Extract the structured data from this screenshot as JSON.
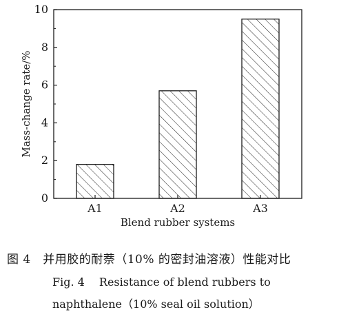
{
  "chart_data": {
    "type": "bar",
    "categories": [
      "A1",
      "A2",
      "A3"
    ],
    "values": [
      1.8,
      5.7,
      9.5
    ],
    "xlabel": "Blend rubber systems",
    "ylabel": "Mass-change rate/%",
    "ylim": [
      0,
      10
    ],
    "yticks": [
      0,
      2,
      4,
      6,
      8,
      10
    ],
    "grid": false,
    "bar_fill": "diagonal-hatch",
    "colors": {
      "bar_stroke": "#1a1a1a",
      "axis": "#1a1a1a",
      "hatch": "#333333"
    }
  },
  "caption": {
    "cn": "图 4　并用胶的耐萘（10% 的密封油溶液）性能对比",
    "en_line1": "Fig. 4　 Resistance of blend rubbers to",
    "en_line2": "naphthalene（10%  seal oil solution）"
  }
}
